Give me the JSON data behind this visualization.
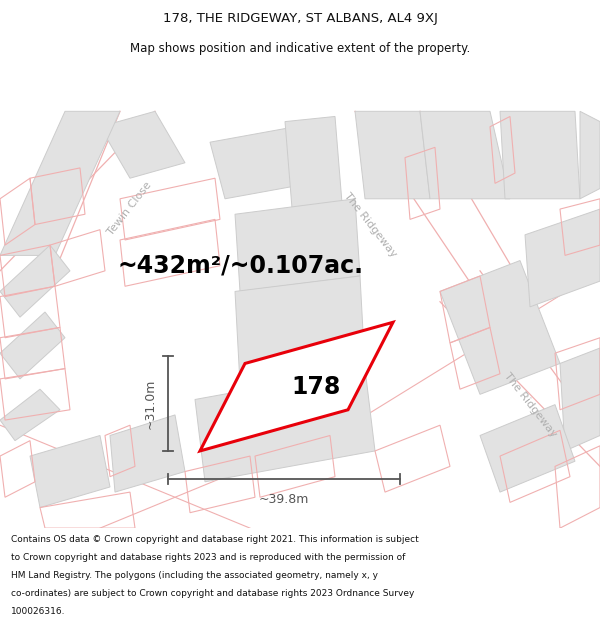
{
  "title_line1": "178, THE RIDGEWAY, ST ALBANS, AL4 9XJ",
  "title_line2": "Map shows position and indicative extent of the property.",
  "area_text": "~432m²/~0.107ac.",
  "property_number": "178",
  "dim_width": "~39.8m",
  "dim_height": "~31.0m",
  "footer_lines": [
    "Contains OS data © Crown copyright and database right 2021. This information is subject",
    "to Crown copyright and database rights 2023 and is reproduced with the permission of",
    "HM Land Registry. The polygons (including the associated geometry, namely x, y",
    "co-ordinates) are subject to Crown copyright and database rights 2023 Ordnance Survey",
    "100026316."
  ],
  "map_bg": "#f7f7f7",
  "road_fill": "#e2e2e2",
  "road_edge": "#cccccc",
  "plot_red": "#e8000a",
  "plot_fill": "#ffffff",
  "pink": "#f0b0b0",
  "pink_light": "#f5c8c8",
  "gray_label": "#b0b0b0",
  "dim_color": "#555555",
  "title_color": "#111111",
  "footer_color": "#111111"
}
